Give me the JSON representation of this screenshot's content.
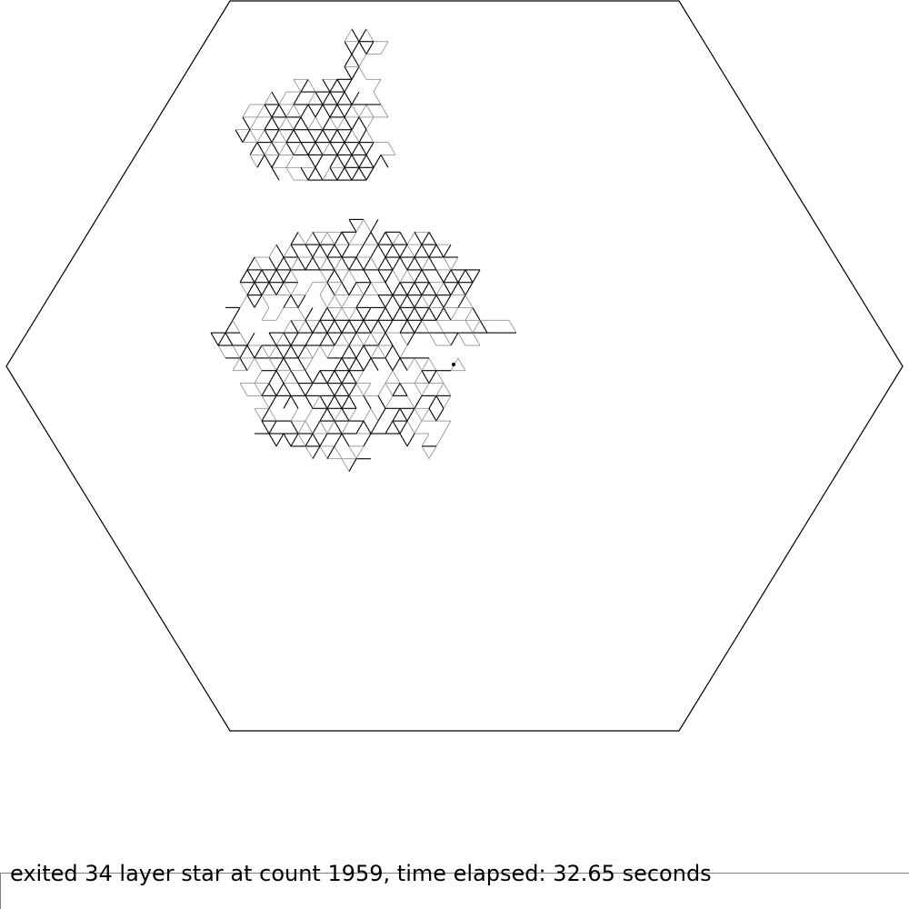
{
  "status": {
    "message": "exited 34 layer star at count 1959, time elapsed: 32.65 seconds"
  },
  "simulation": {
    "layers": 34,
    "count": 1959,
    "time_elapsed_seconds": 32.65,
    "boundary_shape": "hexagon",
    "walk_lattice": "triangular",
    "walker_marker": "dot"
  },
  "colors": {
    "background": "#ffffff",
    "boundary": "#000000",
    "walk_light": "#8a8a8a",
    "walk_dark": "#000000",
    "status_text": "#000000",
    "status_rule": "#808080"
  }
}
